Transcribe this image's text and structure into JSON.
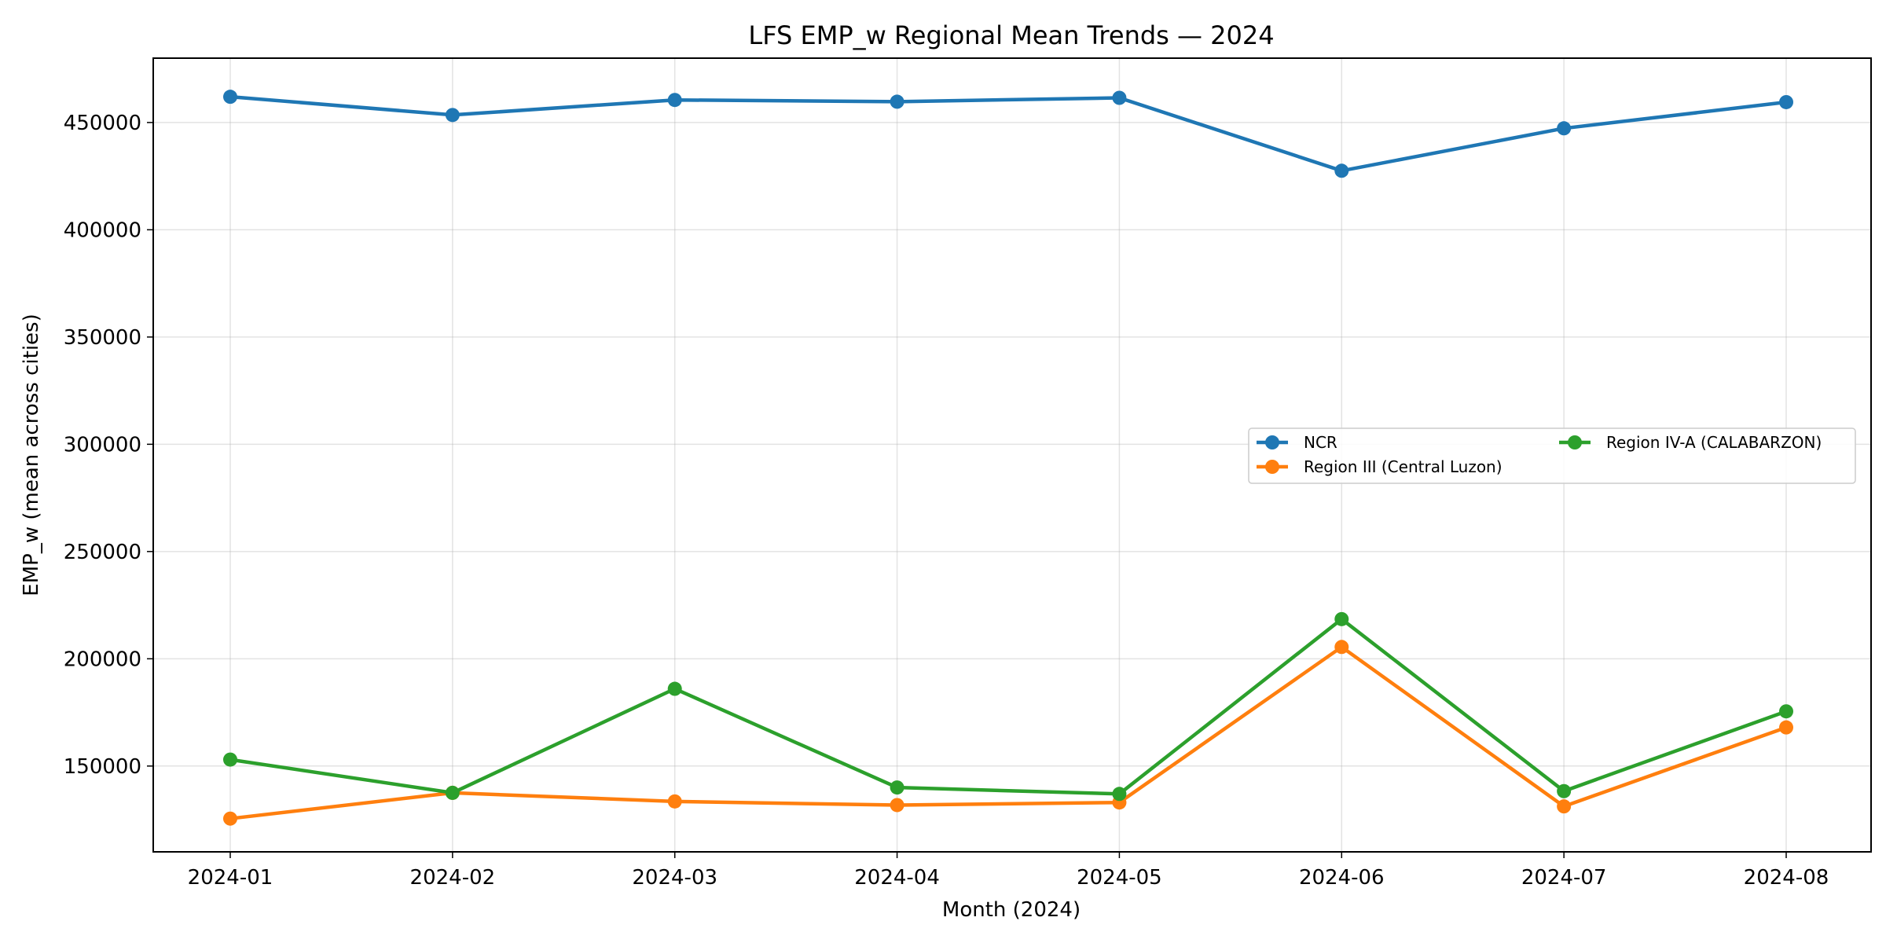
{
  "chart_data": {
    "type": "line",
    "title": "LFS EMP_w Regional Mean Trends — 2024",
    "xlabel": "Month (2024)",
    "ylabel": "EMP_w (mean across cities)",
    "categories": [
      "2024-01",
      "2024-02",
      "2024-03",
      "2024-04",
      "2024-05",
      "2024-06",
      "2024-07",
      "2024-08"
    ],
    "ylim": [
      110000,
      480000
    ],
    "yticks": [
      150000,
      200000,
      250000,
      300000,
      350000,
      400000,
      450000
    ],
    "grid": true,
    "legend_position": "center-right",
    "series": [
      {
        "name": "NCR",
        "color": "#1f77b4",
        "marker": "circle",
        "values": [
          462000,
          453500,
          460500,
          459700,
          461500,
          427500,
          447300,
          459500
        ]
      },
      {
        "name": "Region III (Central Luzon)",
        "color": "#ff7f0e",
        "marker": "circle",
        "values": [
          125500,
          137500,
          133500,
          131800,
          133000,
          205500,
          131200,
          168000
        ]
      },
      {
        "name": "Region IV-A (CALABARZON)",
        "color": "#2ca02c",
        "marker": "circle",
        "values": [
          153000,
          137500,
          186000,
          140000,
          137000,
          218500,
          138300,
          175500
        ]
      }
    ]
  }
}
